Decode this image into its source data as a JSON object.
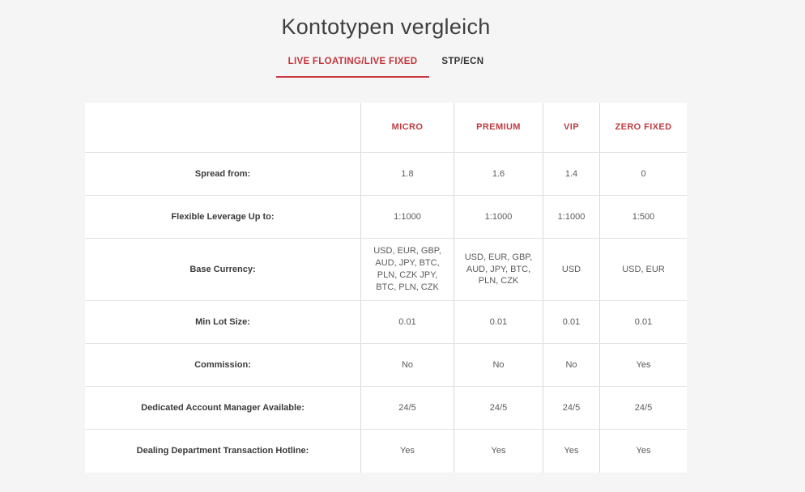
{
  "page": {
    "title": "Kontotypen vergleich",
    "background_color": "#f5f5f5",
    "accent_red": "#c2353b",
    "table_border_color": "#d9d9d9"
  },
  "tabs": [
    {
      "label": "LIVE FLOATING/LIVE FIXED",
      "active": true
    },
    {
      "label": "STP/ECN",
      "active": false
    }
  ],
  "table": {
    "columns": [
      "MICRO",
      "PREMIUM",
      "VIP",
      "ZERO FIXED"
    ],
    "rows": [
      {
        "label": "Spread from:",
        "values": [
          "1.8",
          "1.6",
          "1.4",
          "0"
        ]
      },
      {
        "label": "Flexible Leverage Up to:",
        "values": [
          "1:1000",
          "1:1000",
          "1:1000",
          "1:500"
        ]
      },
      {
        "label": "Base Currency:",
        "values": [
          "USD, EUR, GBP, AUD, JPY, BTC, PLN, CZK JPY, BTC, PLN, CZK",
          "USD, EUR, GBP, AUD, JPY, BTC, PLN, CZK",
          "USD",
          "USD, EUR"
        ]
      },
      {
        "label": "Min Lot Size:",
        "values": [
          "0.01",
          "0.01",
          "0.01",
          "0.01"
        ]
      },
      {
        "label": "Commission:",
        "values": [
          "No",
          "No",
          "No",
          "Yes"
        ]
      },
      {
        "label": "Dedicated Account Manager Available:",
        "values": [
          "24/5",
          "24/5",
          "24/5",
          "24/5"
        ]
      },
      {
        "label": "Dealing Department Transaction Hotline:",
        "values": [
          "Yes",
          "Yes",
          "Yes",
          "Yes"
        ]
      }
    ]
  }
}
